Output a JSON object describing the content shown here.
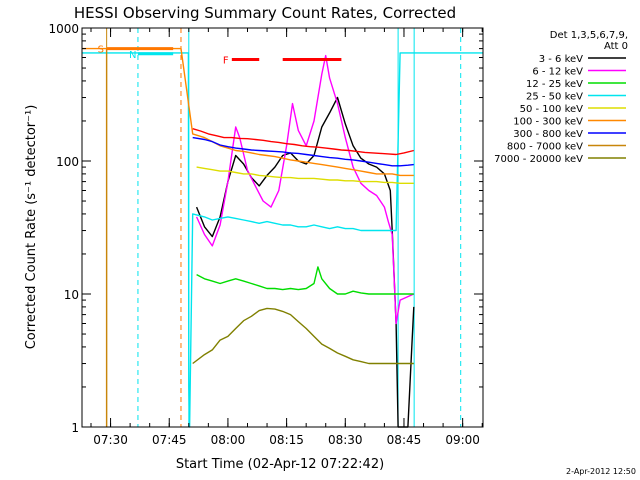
{
  "chart_data": {
    "type": "line",
    "title": "HESSI Observing Summary Count Rates, Corrected",
    "xlabel": "Start Time (02-Apr-12 07:22:42)",
    "ylabel": "Corrected Count Rate (s⁻¹ detector⁻¹)",
    "yscale": "log",
    "ylim": [
      1,
      1000
    ],
    "xlim_minutes": [
      442.7,
      545.2
    ],
    "x_ticks": [
      {
        "label": "07:30",
        "m": 450
      },
      {
        "label": "07:45",
        "m": 465
      },
      {
        "label": "08:00",
        "m": 480
      },
      {
        "label": "08:15",
        "m": 495
      },
      {
        "label": "08:30",
        "m": 510
      },
      {
        "label": "08:45",
        "m": 525
      },
      {
        "label": "09:00",
        "m": 540
      }
    ],
    "y_ticks": [
      {
        "label": "1",
        "v": 1
      },
      {
        "label": "10",
        "v": 10
      },
      {
        "label": "100",
        "v": 100
      },
      {
        "label": "1000",
        "v": 1000
      }
    ],
    "legend_header": [
      "Det 1,3,5,6,7,9,",
      "Att 0"
    ],
    "legend_position": "right",
    "series": [
      {
        "name": "3 - 6 keV",
        "color": "#000000",
        "points": [
          [
            472,
            45
          ],
          [
            474,
            32
          ],
          [
            476,
            27
          ],
          [
            478,
            38
          ],
          [
            480,
            70
          ],
          [
            482,
            110
          ],
          [
            484,
            95
          ],
          [
            486,
            75
          ],
          [
            488,
            65
          ],
          [
            490,
            78
          ],
          [
            492,
            90
          ],
          [
            494,
            110
          ],
          [
            496,
            115
          ],
          [
            498,
            100
          ],
          [
            500,
            95
          ],
          [
            502,
            110
          ],
          [
            504,
            180
          ],
          [
            506,
            230
          ],
          [
            508,
            300
          ],
          [
            510,
            190
          ],
          [
            512,
            130
          ],
          [
            514,
            105
          ],
          [
            516,
            95
          ],
          [
            518,
            90
          ],
          [
            520,
            80
          ],
          [
            521.5,
            60
          ],
          [
            522,
            30
          ],
          [
            523,
            6
          ],
          [
            523.5,
            1
          ],
          [
            526,
            1
          ],
          [
            527,
            4
          ],
          [
            527.5,
            8
          ]
        ]
      },
      {
        "name": "6 - 12 keV",
        "color": "#ff00ff",
        "points": [
          [
            472,
            38
          ],
          [
            474,
            28
          ],
          [
            476,
            23
          ],
          [
            478,
            33
          ],
          [
            480,
            70
          ],
          [
            482,
            180
          ],
          [
            483,
            150
          ],
          [
            485,
            85
          ],
          [
            487,
            65
          ],
          [
            489,
            50
          ],
          [
            491,
            45
          ],
          [
            493,
            60
          ],
          [
            495,
            130
          ],
          [
            496.5,
            270
          ],
          [
            498,
            170
          ],
          [
            500,
            130
          ],
          [
            502,
            200
          ],
          [
            504,
            450
          ],
          [
            505,
            620
          ],
          [
            506,
            420
          ],
          [
            508,
            270
          ],
          [
            510,
            150
          ],
          [
            512,
            90
          ],
          [
            514,
            68
          ],
          [
            516,
            60
          ],
          [
            518,
            55
          ],
          [
            520,
            45
          ],
          [
            521,
            35
          ],
          [
            522,
            28
          ],
          [
            523,
            6
          ],
          [
            524,
            9
          ],
          [
            527.5,
            10
          ]
        ]
      },
      {
        "name": "12 - 25 keV",
        "color": "#00dd00",
        "points": [
          [
            472,
            14
          ],
          [
            474,
            13
          ],
          [
            476,
            12.5
          ],
          [
            478,
            12
          ],
          [
            480,
            12.5
          ],
          [
            482,
            13
          ],
          [
            484,
            12.5
          ],
          [
            486,
            12
          ],
          [
            488,
            11.5
          ],
          [
            490,
            11
          ],
          [
            492,
            11
          ],
          [
            494,
            10.8
          ],
          [
            496,
            11
          ],
          [
            498,
            10.8
          ],
          [
            500,
            11
          ],
          [
            502,
            12
          ],
          [
            503,
            16
          ],
          [
            504,
            13
          ],
          [
            506,
            11
          ],
          [
            508,
            10
          ],
          [
            510,
            10
          ],
          [
            512,
            10.5
          ],
          [
            514,
            10.2
          ],
          [
            516,
            10
          ],
          [
            518,
            10
          ],
          [
            520,
            10
          ],
          [
            522,
            10
          ],
          [
            524,
            10
          ],
          [
            526,
            10
          ],
          [
            527.5,
            10
          ]
        ]
      },
      {
        "name": "25 - 50 keV",
        "color": "#00e5ee",
        "points": [
          [
            442.7,
            650
          ],
          [
            446,
            650
          ],
          [
            448,
            650
          ],
          [
            449,
            650
          ],
          [
            463.5,
            650
          ],
          [
            468,
            650
          ],
          [
            469.9,
            650
          ],
          [
            470,
            2
          ],
          [
            470.2,
            1
          ],
          [
            471,
            40
          ],
          [
            474,
            38
          ],
          [
            476,
            36
          ],
          [
            478,
            37
          ],
          [
            480,
            38
          ],
          [
            482,
            37
          ],
          [
            484,
            36
          ],
          [
            486,
            35
          ],
          [
            488,
            34
          ],
          [
            490,
            35
          ],
          [
            492,
            34
          ],
          [
            494,
            33
          ],
          [
            496,
            33
          ],
          [
            498,
            32
          ],
          [
            500,
            32
          ],
          [
            502,
            33
          ],
          [
            504,
            32
          ],
          [
            506,
            31
          ],
          [
            508,
            32
          ],
          [
            510,
            31
          ],
          [
            512,
            31
          ],
          [
            514,
            30
          ],
          [
            516,
            30
          ],
          [
            518,
            30
          ],
          [
            520,
            30
          ],
          [
            522,
            30
          ],
          [
            523,
            30
          ],
          [
            524,
            650
          ],
          [
            526,
            650
          ],
          [
            530,
            650
          ],
          [
            535,
            650
          ],
          [
            539.5,
            650
          ],
          [
            545.2,
            650
          ]
        ]
      },
      {
        "name": "50 - 100 keV",
        "color": "#dddd00",
        "points": [
          [
            472,
            90
          ],
          [
            474,
            88
          ],
          [
            476,
            86
          ],
          [
            478,
            84
          ],
          [
            480,
            84
          ],
          [
            482,
            82
          ],
          [
            484,
            80
          ],
          [
            486,
            80
          ],
          [
            488,
            78
          ],
          [
            490,
            77
          ],
          [
            492,
            76
          ],
          [
            494,
            75
          ],
          [
            496,
            75
          ],
          [
            498,
            74
          ],
          [
            500,
            74
          ],
          [
            502,
            74
          ],
          [
            504,
            73
          ],
          [
            506,
            72
          ],
          [
            508,
            72
          ],
          [
            510,
            71
          ],
          [
            512,
            71
          ],
          [
            514,
            70
          ],
          [
            516,
            70
          ],
          [
            518,
            70
          ],
          [
            520,
            69
          ],
          [
            522,
            69
          ],
          [
            524,
            68
          ],
          [
            526,
            68
          ],
          [
            527.5,
            68
          ]
        ]
      },
      {
        "name": "100 - 300 keV",
        "color": "#ff8800",
        "points": [
          [
            442.7,
            700
          ],
          [
            449,
            700
          ],
          [
            458,
            700
          ],
          [
            466,
            700
          ],
          [
            468,
            700
          ],
          [
            471,
            160
          ],
          [
            474,
            150
          ],
          [
            476,
            140
          ],
          [
            478,
            130
          ],
          [
            480,
            125
          ],
          [
            482,
            120
          ],
          [
            484,
            118
          ],
          [
            486,
            115
          ],
          [
            488,
            112
          ],
          [
            490,
            110
          ],
          [
            492,
            108
          ],
          [
            494,
            105
          ],
          [
            496,
            102
          ],
          [
            498,
            100
          ],
          [
            500,
            98
          ],
          [
            502,
            96
          ],
          [
            504,
            94
          ],
          [
            506,
            92
          ],
          [
            508,
            90
          ],
          [
            510,
            88
          ],
          [
            512,
            86
          ],
          [
            514,
            84
          ],
          [
            516,
            82
          ],
          [
            518,
            80
          ],
          [
            520,
            80
          ],
          [
            522,
            80
          ],
          [
            524,
            78
          ],
          [
            526,
            78
          ],
          [
            527.5,
            78
          ]
        ]
      },
      {
        "name": "300 - 800 keV",
        "color": "#0000ff",
        "points": [
          [
            471,
            150
          ],
          [
            474,
            145
          ],
          [
            476,
            140
          ],
          [
            478,
            132
          ],
          [
            480,
            128
          ],
          [
            482,
            125
          ],
          [
            484,
            123
          ],
          [
            486,
            121
          ],
          [
            488,
            120
          ],
          [
            490,
            119
          ],
          [
            492,
            118
          ],
          [
            494,
            117
          ],
          [
            496,
            115
          ],
          [
            498,
            114
          ],
          [
            500,
            112
          ],
          [
            502,
            110
          ],
          [
            504,
            108
          ],
          [
            506,
            106
          ],
          [
            508,
            105
          ],
          [
            510,
            103
          ],
          [
            512,
            102
          ],
          [
            514,
            100
          ],
          [
            516,
            98
          ],
          [
            518,
            96
          ],
          [
            520,
            94
          ],
          [
            522,
            92
          ],
          [
            524,
            92
          ],
          [
            526,
            93
          ],
          [
            527.5,
            94
          ]
        ]
      },
      {
        "name": "800 - 7000 keV",
        "color": "#c8860a",
        "points": [
          [
            449,
            1
          ],
          [
            449,
            700
          ]
        ]
      },
      {
        "name": "7000 - 20000 keV",
        "color": "#808000",
        "points": [
          [
            471,
            3
          ],
          [
            474,
            3.5
          ],
          [
            476,
            3.8
          ],
          [
            478,
            4.5
          ],
          [
            480,
            4.8
          ],
          [
            482,
            5.5
          ],
          [
            484,
            6.3
          ],
          [
            486,
            6.8
          ],
          [
            488,
            7.5
          ],
          [
            490,
            7.8
          ],
          [
            492,
            7.7
          ],
          [
            494,
            7.4
          ],
          [
            496,
            7
          ],
          [
            498,
            6.2
          ],
          [
            500,
            5.5
          ],
          [
            502,
            4.8
          ],
          [
            504,
            4.2
          ],
          [
            506,
            3.9
          ],
          [
            508,
            3.6
          ],
          [
            510,
            3.4
          ],
          [
            512,
            3.2
          ],
          [
            514,
            3.1
          ],
          [
            516,
            3
          ],
          [
            518,
            3
          ],
          [
            520,
            3
          ],
          [
            522,
            3
          ],
          [
            524,
            3
          ],
          [
            526,
            3
          ],
          [
            527.5,
            3
          ]
        ]
      },
      {
        "name": "",
        "color": "#ff0000",
        "points": [
          [
            471,
            175
          ],
          [
            473,
            168
          ],
          [
            475,
            160
          ],
          [
            477,
            155
          ],
          [
            479,
            150
          ],
          [
            481,
            150
          ],
          [
            483,
            148
          ],
          [
            485,
            147
          ],
          [
            487,
            145
          ],
          [
            489,
            143
          ],
          [
            491,
            140
          ],
          [
            493,
            138
          ],
          [
            495,
            135
          ],
          [
            497,
            133
          ],
          [
            499,
            130
          ],
          [
            501,
            128
          ],
          [
            503,
            127
          ],
          [
            505,
            125
          ],
          [
            507,
            123
          ],
          [
            509,
            121
          ],
          [
            511,
            120
          ],
          [
            513,
            118
          ],
          [
            515,
            116
          ],
          [
            517,
            115
          ],
          [
            519,
            114
          ],
          [
            521,
            113
          ],
          [
            523,
            112
          ],
          [
            525,
            115
          ],
          [
            527.5,
            120
          ]
        ]
      }
    ],
    "annotations": [
      {
        "label": "S",
        "color": "#ff7700",
        "x0": 449,
        "x1": 466,
        "y": 700
      },
      {
        "label": "N",
        "color": "#00e5ee",
        "x0": 457,
        "x1": 466,
        "y": 640
      },
      {
        "label": "F",
        "color": "#ff0000",
        "x0": 481,
        "x1": 488,
        "y": 580
      },
      {
        "label": "",
        "color": "#ff0000",
        "x0": 494,
        "x1": 509,
        "y": 580
      }
    ],
    "vertical_markers": [
      {
        "m": 449,
        "color": "#c8860a",
        "dashed": false
      },
      {
        "m": 457,
        "color": "#00e5ee",
        "dashed": true
      },
      {
        "m": 468,
        "color": "#ff7700",
        "dashed": true
      },
      {
        "m": 470,
        "color": "#00e5ee",
        "dashed": false
      },
      {
        "m": 523.5,
        "color": "#00e5ee",
        "dashed": false
      },
      {
        "m": 527.6,
        "color": "#00e5ee",
        "dashed": false
      },
      {
        "m": 539.5,
        "color": "#00e5ee",
        "dashed": true
      }
    ],
    "timestamp": "2-Apr-2012 12:50"
  }
}
